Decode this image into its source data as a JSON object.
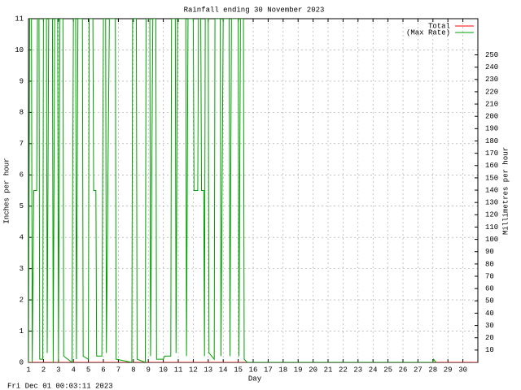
{
  "chart_data": {
    "type": "line",
    "title": "Rainfall ending 30 November 2023",
    "x_label": "Day",
    "y_label": "Inches per hour",
    "y2_label": "Millimetres per hour",
    "footer": "Fri Dec 01 00:03:11 2023",
    "xlim": [
      1,
      31
    ],
    "xticks": [
      1,
      2,
      3,
      4,
      5,
      6,
      7,
      8,
      9,
      10,
      11,
      12,
      13,
      14,
      15,
      16,
      17,
      18,
      19,
      20,
      21,
      22,
      23,
      24,
      25,
      26,
      27,
      28,
      29,
      30
    ],
    "ylim": [
      0,
      11
    ],
    "yticks": [
      0,
      1,
      2,
      3,
      4,
      5,
      6,
      7,
      8,
      9,
      10,
      11
    ],
    "y2lim": [
      0,
      279.4
    ],
    "y2ticks": [
      10,
      20,
      30,
      40,
      50,
      60,
      70,
      80,
      90,
      100,
      110,
      120,
      130,
      140,
      150,
      160,
      170,
      180,
      190,
      200,
      210,
      220,
      230,
      240,
      250
    ],
    "grid": true,
    "legend": "top-right",
    "series": [
      {
        "name": "Total",
        "color": "#ff0000",
        "x": [
          1,
          31
        ],
        "values": [
          0,
          0
        ]
      },
      {
        "name": "(Max Rate)",
        "color": "#00a000",
        "x": [
          1.0,
          1.08,
          1.2,
          1.25,
          1.35,
          1.55,
          1.6,
          1.7,
          1.75,
          1.95,
          2.0,
          2.2,
          2.25,
          2.35,
          2.6,
          2.65,
          2.75,
          2.95,
          3.0,
          3.1,
          3.3,
          3.35,
          3.9,
          4.0,
          4.15,
          4.2,
          4.3,
          4.6,
          4.65,
          5.0,
          5.05,
          5.3,
          5.35,
          5.5,
          5.55,
          5.9,
          6.0,
          6.15,
          6.2,
          6.4,
          6.8,
          6.85,
          7.9,
          7.95,
          8.2,
          8.25,
          8.8,
          8.85,
          9.1,
          9.15,
          9.3,
          9.5,
          9.55,
          10.0,
          10.1,
          10.5,
          10.55,
          10.8,
          10.85,
          10.95,
          11.5,
          11.55,
          11.65,
          12.0,
          12.05,
          12.3,
          12.35,
          12.5,
          12.55,
          12.7,
          12.75,
          12.8,
          13.0,
          13.05,
          13.4,
          13.45,
          13.8,
          13.85,
          14.0,
          14.4,
          14.45,
          14.55,
          15.0,
          15.05,
          15.15,
          15.35,
          15.4,
          15.6,
          28.0,
          28.05,
          28.2
        ],
        "values": [
          0,
          11,
          11,
          0,
          5.5,
          5.5,
          11,
          11,
          0.1,
          0.1,
          11,
          11,
          0.3,
          11,
          11,
          0,
          11,
          11,
          0,
          11,
          11,
          0.2,
          0,
          11,
          11,
          0.1,
          11,
          11,
          0.2,
          0.1,
          11,
          11,
          5.5,
          5.5,
          0.2,
          0.2,
          11,
          11,
          0.3,
          11,
          11,
          0.1,
          0,
          11,
          11,
          0.1,
          0,
          11,
          11,
          0.2,
          11,
          11,
          0.1,
          0.1,
          0.2,
          0.2,
          11,
          11,
          0.3,
          11,
          11,
          0.2,
          11,
          11,
          5.5,
          5.5,
          11,
          11,
          5.5,
          5.5,
          0.2,
          11,
          11,
          0.3,
          0.1,
          11,
          11,
          0.2,
          11,
          11,
          0.2,
          11,
          11,
          0.2,
          11,
          11,
          0.1,
          0,
          0,
          0.1,
          0
        ]
      }
    ]
  }
}
